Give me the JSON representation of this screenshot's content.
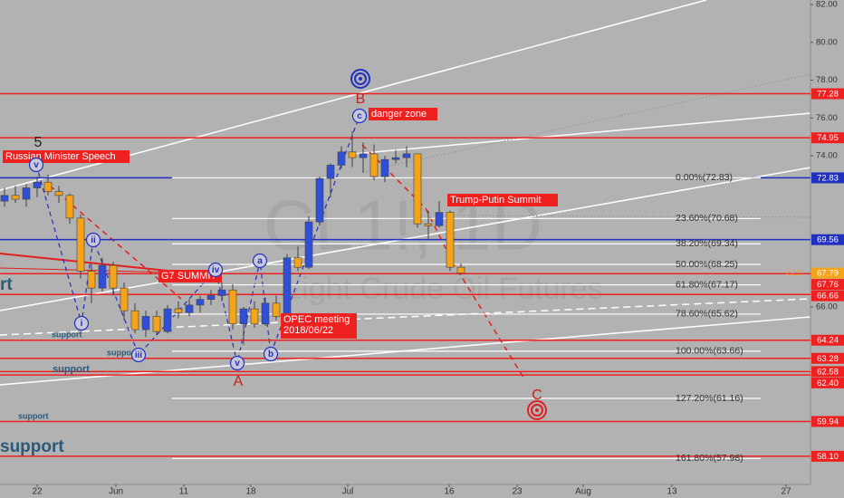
{
  "chart_data": {
    "type": "candlestick",
    "watermark": [
      "CL1!, 1D",
      "Light Crude Oil Futures"
    ],
    "symbol": "CL1!",
    "ylim": [
      56.61,
      82.24
    ],
    "yticks": [
      {
        "value": 82,
        "label": "82.00"
      },
      {
        "value": 80,
        "label": "80.00"
      },
      {
        "value": 78,
        "label": "78.00"
      },
      {
        "value": 76,
        "label": "76.00"
      },
      {
        "value": 74,
        "label": "74.00"
      },
      {
        "value": 66,
        "label": "66.00"
      }
    ],
    "xticks": [
      "22",
      "Jun",
      "11",
      "18",
      "Jul",
      "16",
      "23",
      "Aug",
      "13",
      "27"
    ],
    "up_color": "#2f4fd8",
    "down_color": "#f5a31a",
    "candles": [
      {
        "open": 71.6,
        "high": 72.3,
        "low": 71.3,
        "close": 71.9
      },
      {
        "open": 71.9,
        "high": 72.4,
        "low": 71.5,
        "close": 71.7
      },
      {
        "open": 71.7,
        "high": 72.5,
        "low": 71.3,
        "close": 72.3
      },
      {
        "open": 72.3,
        "high": 72.9,
        "low": 71.8,
        "close": 72.6
      },
      {
        "open": 72.6,
        "high": 73.0,
        "low": 71.9,
        "close": 72.1
      },
      {
        "open": 72.1,
        "high": 72.4,
        "low": 71.5,
        "close": 71.9
      },
      {
        "open": 71.9,
        "high": 72.0,
        "low": 70.4,
        "close": 70.7
      },
      {
        "open": 70.7,
        "high": 70.9,
        "low": 67.5,
        "close": 67.9
      },
      {
        "open": 67.9,
        "high": 68.3,
        "low": 66.2,
        "close": 67.0
      },
      {
        "open": 67.0,
        "high": 68.6,
        "low": 66.8,
        "close": 68.2
      },
      {
        "open": 68.2,
        "high": 68.4,
        "low": 66.6,
        "close": 67.0
      },
      {
        "open": 67.0,
        "high": 67.3,
        "low": 65.3,
        "close": 65.8
      },
      {
        "open": 65.8,
        "high": 66.2,
        "low": 64.6,
        "close": 64.8
      },
      {
        "open": 64.8,
        "high": 65.8,
        "low": 64.4,
        "close": 65.5
      },
      {
        "open": 65.5,
        "high": 65.8,
        "low": 64.5,
        "close": 64.7
      },
      {
        "open": 64.7,
        "high": 66.1,
        "low": 64.6,
        "close": 65.9
      },
      {
        "open": 65.9,
        "high": 66.3,
        "low": 65.4,
        "close": 65.7
      },
      {
        "open": 65.7,
        "high": 66.4,
        "low": 65.5,
        "close": 66.1
      },
      {
        "open": 66.1,
        "high": 66.6,
        "low": 65.7,
        "close": 66.4
      },
      {
        "open": 66.4,
        "high": 66.9,
        "low": 66.1,
        "close": 66.6
      },
      {
        "open": 66.6,
        "high": 67.3,
        "low": 66.3,
        "close": 66.9
      },
      {
        "open": 66.9,
        "high": 67.2,
        "low": 64.8,
        "close": 65.1
      },
      {
        "open": 65.1,
        "high": 66.0,
        "low": 64.0,
        "close": 65.9
      },
      {
        "open": 65.9,
        "high": 66.3,
        "low": 64.9,
        "close": 65.1
      },
      {
        "open": 65.1,
        "high": 66.5,
        "low": 65.0,
        "close": 66.2
      },
      {
        "open": 66.2,
        "high": 66.6,
        "low": 65.3,
        "close": 65.5
      },
      {
        "open": 65.5,
        "high": 68.8,
        "low": 65.4,
        "close": 68.6
      },
      {
        "open": 68.6,
        "high": 69.2,
        "low": 67.9,
        "close": 68.1
      },
      {
        "open": 68.1,
        "high": 70.8,
        "low": 68.0,
        "close": 70.5
      },
      {
        "open": 70.5,
        "high": 72.9,
        "low": 70.3,
        "close": 72.8
      },
      {
        "open": 72.8,
        "high": 73.6,
        "low": 71.8,
        "close": 73.5
      },
      {
        "open": 73.5,
        "high": 74.5,
        "low": 73.3,
        "close": 74.2
      },
      {
        "open": 74.2,
        "high": 75.3,
        "low": 73.4,
        "close": 73.9
      },
      {
        "open": 73.9,
        "high": 74.7,
        "low": 73.1,
        "close": 74.1
      },
      {
        "open": 74.1,
        "high": 74.6,
        "low": 72.7,
        "close": 72.9
      },
      {
        "open": 72.9,
        "high": 74.0,
        "low": 72.6,
        "close": 73.8
      },
      {
        "open": 73.8,
        "high": 74.3,
        "low": 73.6,
        "close": 73.9
      },
      {
        "open": 73.9,
        "high": 74.5,
        "low": 73.4,
        "close": 74.1
      },
      {
        "open": 74.1,
        "high": 74.1,
        "low": 70.2,
        "close": 70.4
      },
      {
        "open": 70.4,
        "high": 71.1,
        "low": 69.6,
        "close": 70.3
      },
      {
        "open": 70.3,
        "high": 71.6,
        "low": 70.2,
        "close": 71.0
      },
      {
        "open": 71.0,
        "high": 71.1,
        "low": 67.9,
        "close": 68.1
      },
      {
        "open": 68.1,
        "high": 68.3,
        "low": 67.7,
        "close": 67.79
      }
    ],
    "last_price": {
      "value": 67.79,
      "label": "67.79"
    },
    "resistance_levels": [
      {
        "value": 77.28,
        "label": "77.28"
      },
      {
        "value": 74.95,
        "label": "74.95"
      },
      {
        "value": 67.76,
        "label": "67.76"
      },
      {
        "value": 66.66,
        "label": "66.66"
      },
      {
        "value": 64.24,
        "label": "64.24"
      },
      {
        "value": 63.28,
        "label": "63.28"
      },
      {
        "value": 62.58,
        "label": "62.58"
      },
      {
        "value": 62.4,
        "label": "62.40"
      },
      {
        "value": 59.94,
        "label": "59.94"
      },
      {
        "value": 58.1,
        "label": "58.10"
      }
    ],
    "blue_levels": [
      {
        "value": 72.83,
        "label": "72.83"
      },
      {
        "value": 69.56,
        "label": "69.56"
      }
    ],
    "fib_levels": [
      {
        "value": 72.83,
        "label": "0.00%(72.83)"
      },
      {
        "value": 70.68,
        "label": "23.60%(70.68)"
      },
      {
        "value": 69.34,
        "label": "38.20%(69.34)"
      },
      {
        "value": 68.25,
        "label": "50.00%(68.25)"
      },
      {
        "value": 67.17,
        "label": "61.80%(67.17)"
      },
      {
        "value": 65.62,
        "label": "78.60%(65.62)"
      },
      {
        "value": 63.66,
        "label": "100.00%(63.66)"
      },
      {
        "value": 61.16,
        "label": "127.20%(61.16)"
      },
      {
        "value": 57.98,
        "label": "161.80%(57.98)"
      }
    ],
    "annotations": [
      [
        "Russian Minister Speech"
      ],
      [
        "G7 SUMMIT"
      ],
      [
        "OPEC meeting",
        "2018/06/22"
      ],
      [
        "danger zone"
      ],
      [
        "Trump-Putin Summit"
      ]
    ],
    "support_labels": [
      "support",
      "support",
      "support",
      "support",
      "support",
      "rt"
    ],
    "wave_labels": [
      "5",
      "B",
      "A",
      "C"
    ],
    "wave_circles": [
      "v",
      "ii",
      "i",
      "iii",
      "iv",
      "v",
      "a",
      "b",
      "c"
    ]
  }
}
